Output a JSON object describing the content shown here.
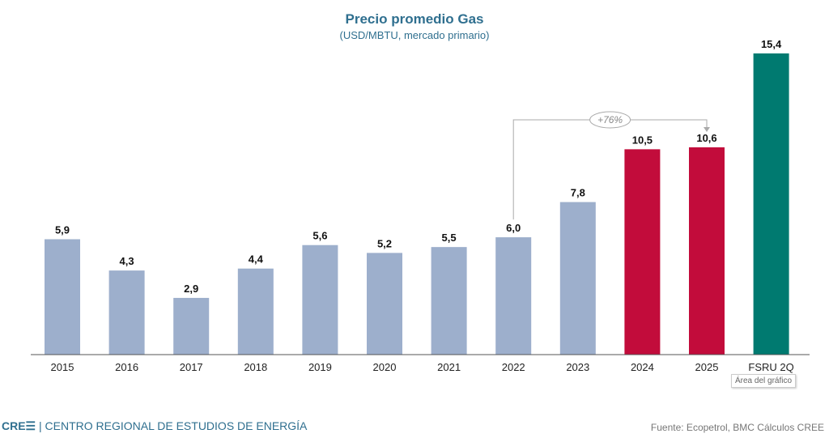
{
  "chart_data": {
    "type": "bar",
    "title": "Precio promedio Gas",
    "subtitle": "(USD/MBTU, mercado primario)",
    "categories": [
      "2015",
      "2016",
      "2017",
      "2018",
      "2019",
      "2020",
      "2021",
      "2022",
      "2023",
      "2024",
      "2025",
      "FSRU 2Q"
    ],
    "values": [
      5.9,
      4.3,
      2.9,
      4.4,
      5.6,
      5.2,
      5.5,
      6.0,
      7.8,
      10.5,
      10.6,
      15.4
    ],
    "labels": [
      "5,9",
      "4,3",
      "2,9",
      "4,4",
      "5,6",
      "5,2",
      "5,5",
      "6,0",
      "7,8",
      "10,5",
      "10,6",
      "15,4"
    ],
    "colors": [
      "#9dafcc",
      "#9dafcc",
      "#9dafcc",
      "#9dafcc",
      "#9dafcc",
      "#9dafcc",
      "#9dafcc",
      "#9dafcc",
      "#9dafcc",
      "#c20c3b",
      "#c20c3b",
      "#007a70"
    ],
    "ylim": [
      0,
      15.4
    ],
    "grid": false,
    "annotation": {
      "text": "+76%",
      "from": "2022",
      "to": "2025"
    }
  },
  "tooltip": "Área del gráfico",
  "footer": {
    "logo": "CRE☰",
    "org": " | CENTRO REGIONAL DE ESTUDIOS DE ENERGÍA",
    "source": "Fuente: Ecopetrol, BMC Cálculos CREE"
  }
}
